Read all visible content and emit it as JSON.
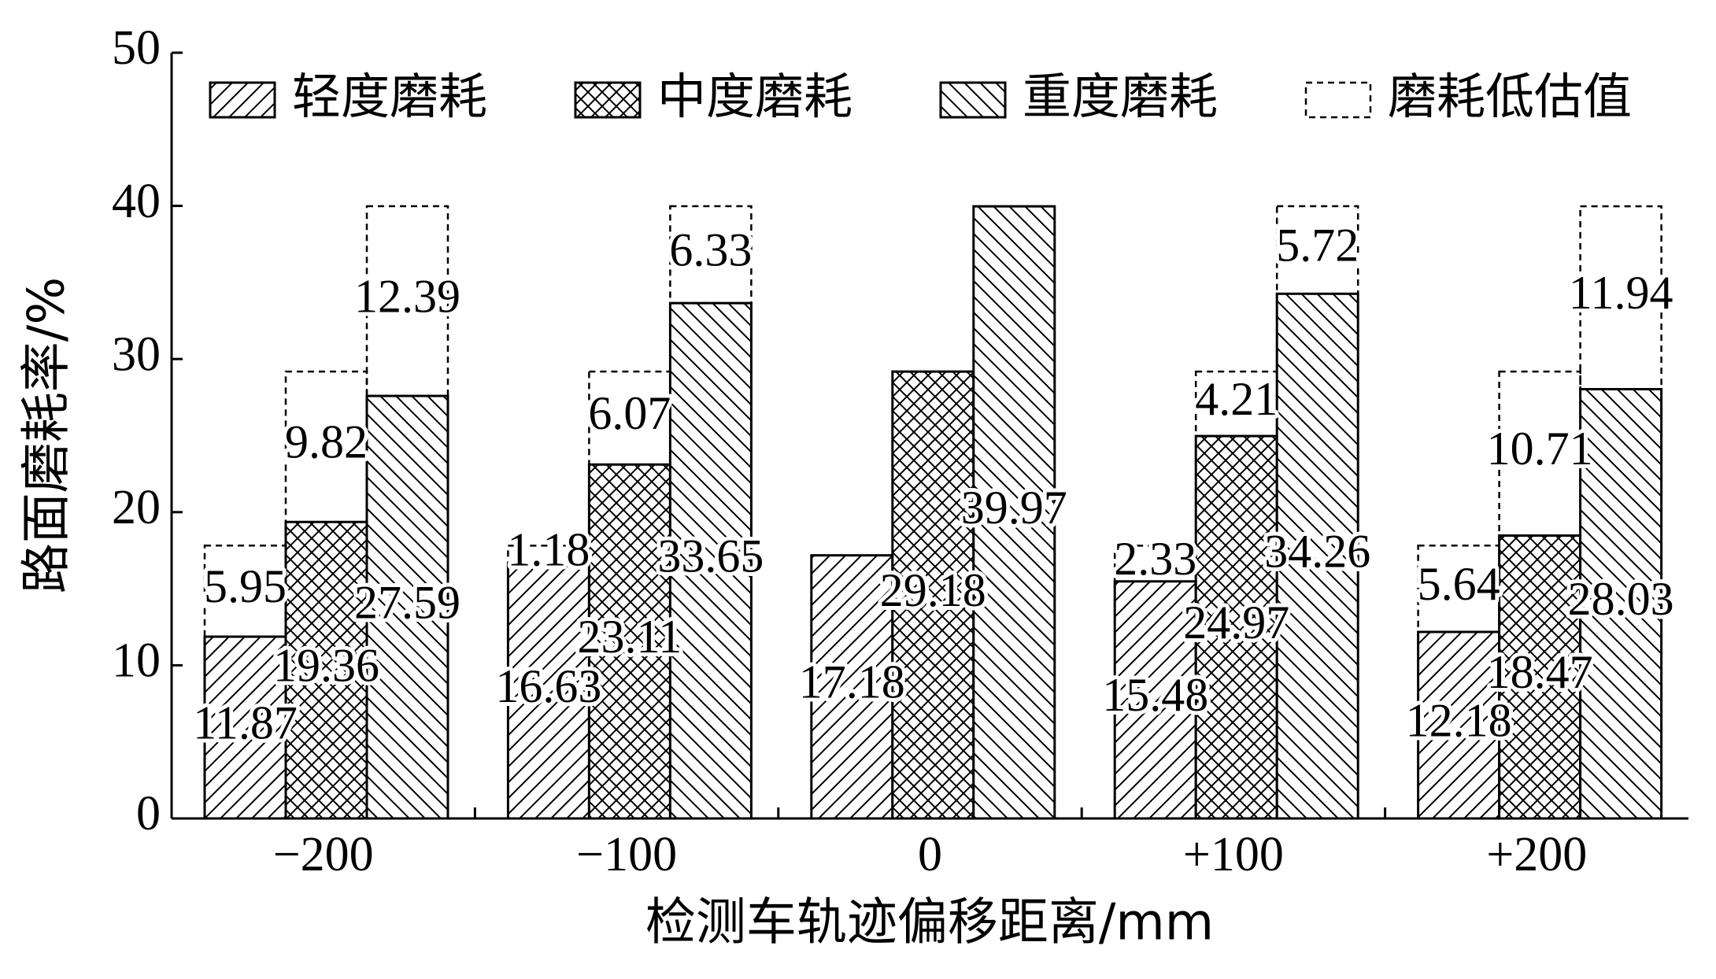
{
  "chart_data": {
    "type": "bar",
    "categories": [
      "−200",
      "−100",
      "0",
      "+100",
      "+200"
    ],
    "series": [
      {
        "name": "轻度磨耗",
        "hatch": "forward",
        "values": [
          11.87,
          16.63,
          17.18,
          15.48,
          12.18
        ],
        "underestimate": [
          5.95,
          1.18,
          null,
          2.33,
          5.64
        ]
      },
      {
        "name": "中度磨耗",
        "hatch": "cross",
        "values": [
          19.36,
          23.11,
          29.18,
          24.97,
          18.47
        ],
        "underestimate": [
          9.82,
          6.07,
          null,
          4.21,
          10.71
        ]
      },
      {
        "name": "重度磨耗",
        "hatch": "back",
        "values": [
          27.59,
          33.65,
          39.97,
          34.26,
          28.03
        ],
        "underestimate": [
          12.39,
          6.33,
          null,
          5.72,
          11.94
        ]
      }
    ],
    "underestimate_name": "磨耗低估值",
    "xlabel": "检测车轨迹偏移距离/mm",
    "ylabel": "路面磨耗率/%",
    "ylim": [
      0,
      50
    ],
    "yticks": [
      0,
      10,
      20,
      30,
      40,
      50
    ]
  }
}
